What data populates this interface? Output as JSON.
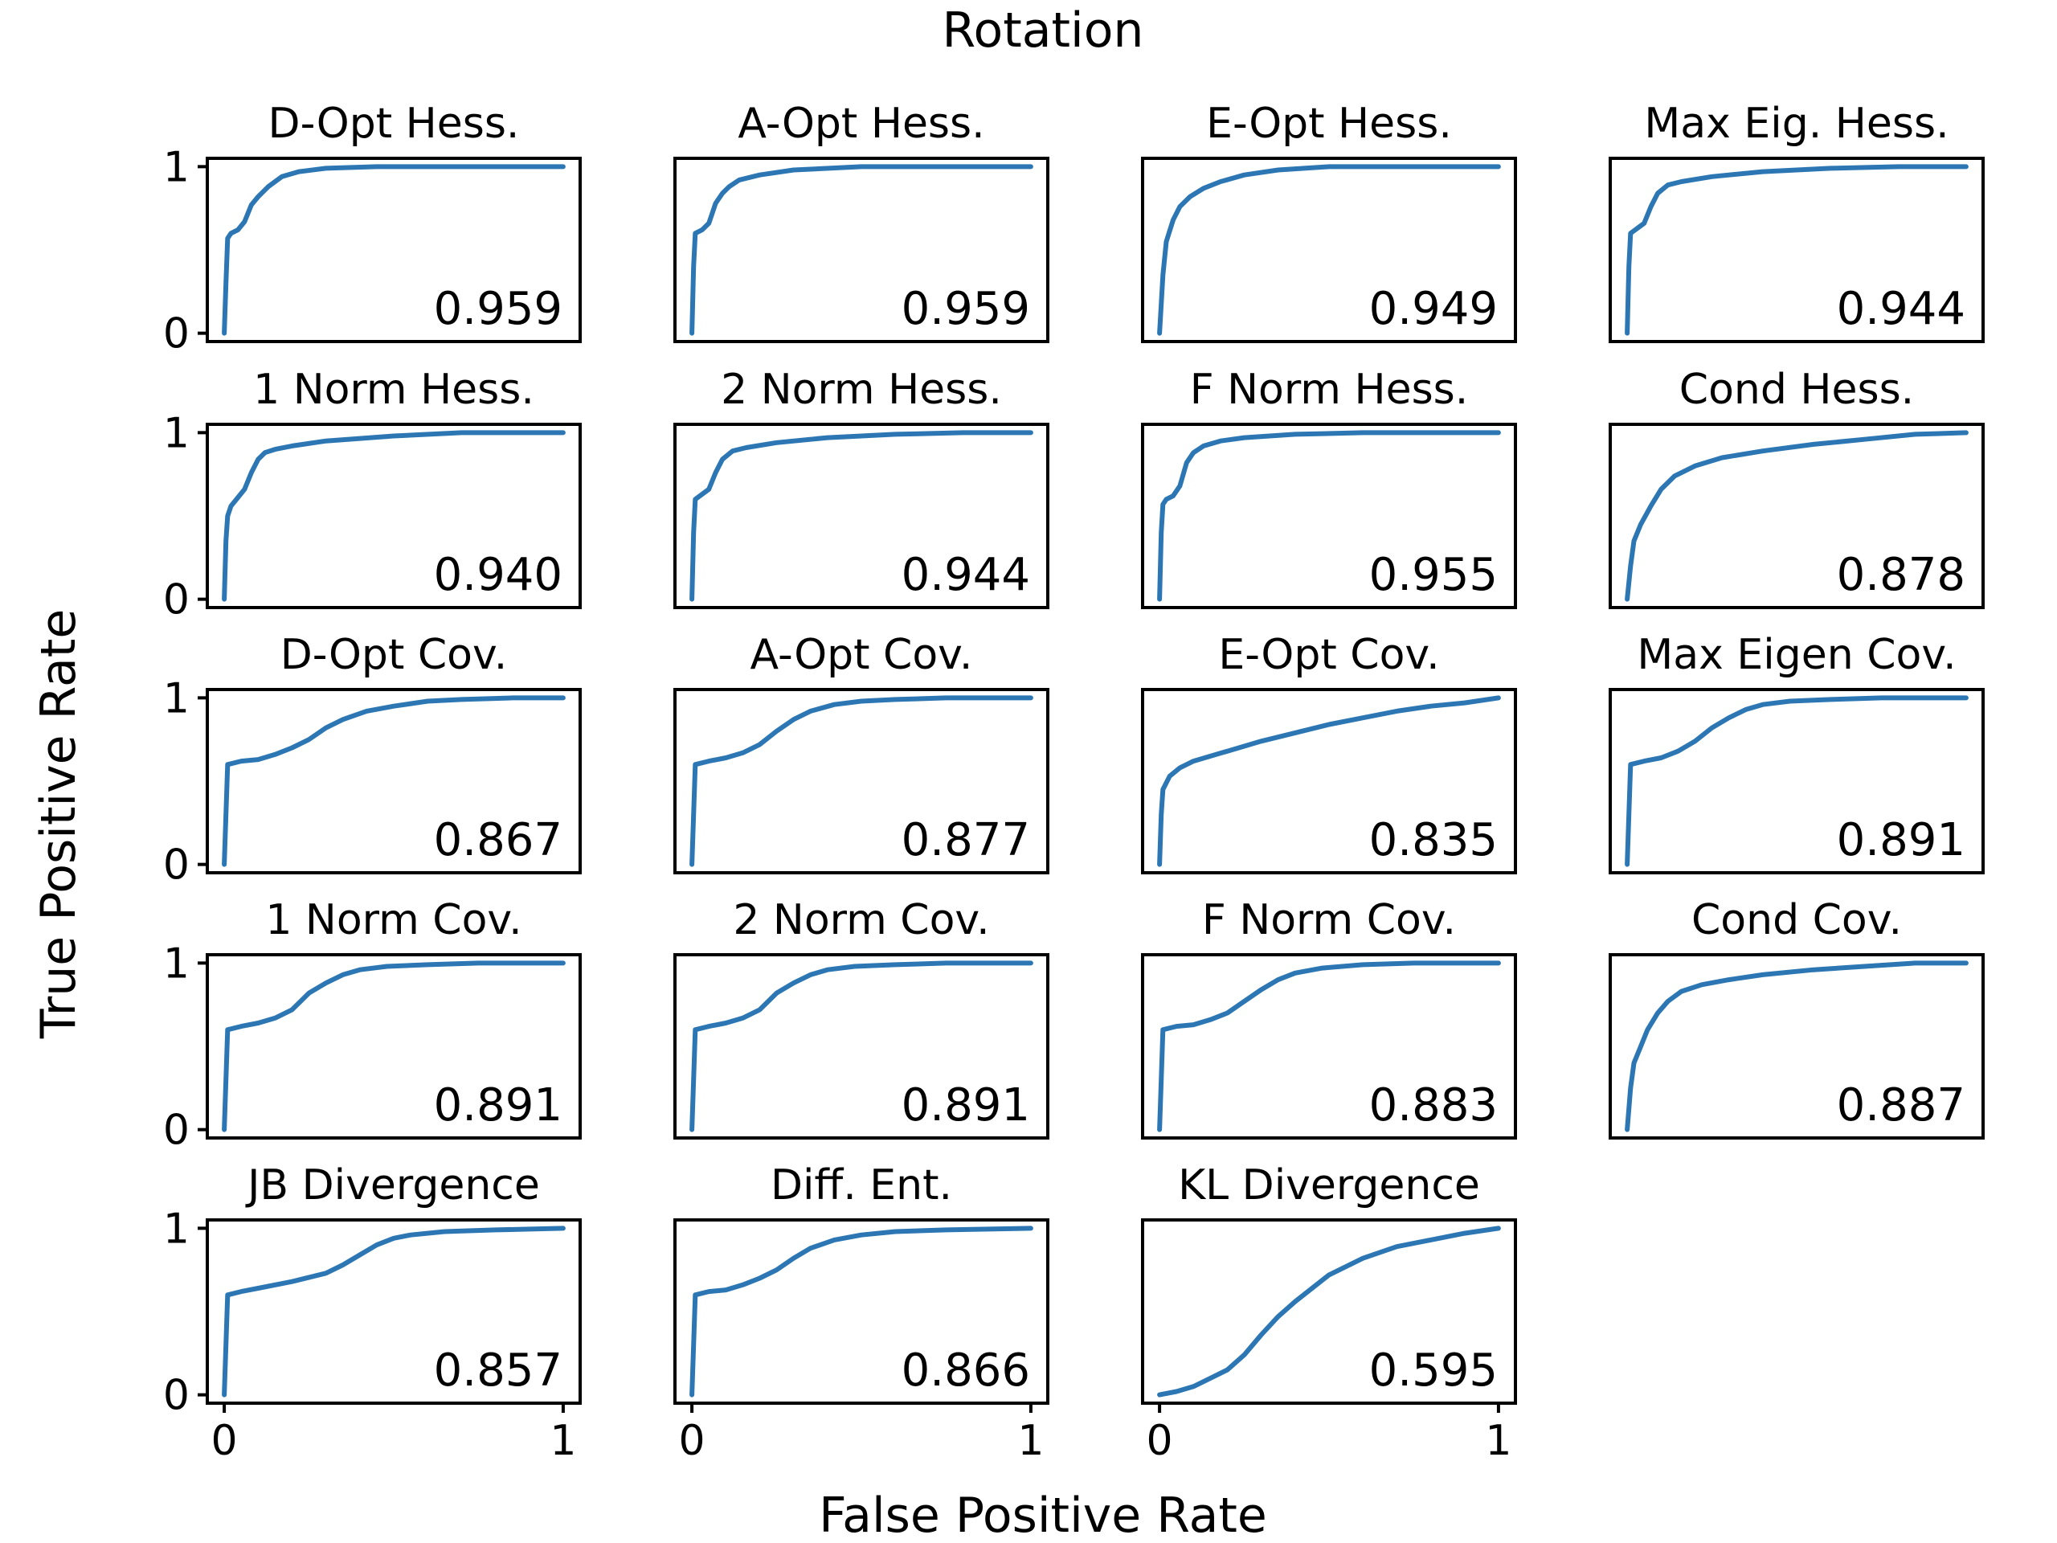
{
  "figure": {
    "title": "Rotation",
    "xlabel": "False Positive Rate",
    "ylabel": "True Positive Rate",
    "line_color": "#2c77b3"
  },
  "chart_data": {
    "type": "line",
    "grid": false,
    "xlim": [
      0,
      1
    ],
    "ylim": [
      0,
      1
    ],
    "xticks": [
      "0",
      "1"
    ],
    "yticks": [
      "0",
      "1"
    ],
    "panels": [
      {
        "title": "D-Opt Hess.",
        "auc": "0.959",
        "x": [
          0,
          0.005,
          0.01,
          0.02,
          0.04,
          0.06,
          0.08,
          0.1,
          0.13,
          0.17,
          0.22,
          0.3,
          0.45,
          0.7,
          1
        ],
        "y": [
          0,
          0.3,
          0.57,
          0.6,
          0.62,
          0.67,
          0.77,
          0.82,
          0.88,
          0.94,
          0.97,
          0.99,
          1,
          1,
          1
        ]
      },
      {
        "title": "A-Opt Hess.",
        "auc": "0.959",
        "x": [
          0,
          0.005,
          0.01,
          0.03,
          0.05,
          0.07,
          0.09,
          0.11,
          0.14,
          0.2,
          0.3,
          0.5,
          0.75,
          1
        ],
        "y": [
          0,
          0.4,
          0.6,
          0.62,
          0.66,
          0.78,
          0.84,
          0.88,
          0.92,
          0.95,
          0.98,
          1,
          1,
          1
        ]
      },
      {
        "title": "E-Opt Hess.",
        "auc": "0.949",
        "x": [
          0,
          0.01,
          0.02,
          0.04,
          0.06,
          0.09,
          0.13,
          0.18,
          0.25,
          0.35,
          0.5,
          0.75,
          1
        ],
        "y": [
          0,
          0.35,
          0.55,
          0.68,
          0.76,
          0.82,
          0.87,
          0.91,
          0.95,
          0.98,
          1,
          1,
          1
        ]
      },
      {
        "title": "Max Eig. Hess.",
        "auc": "0.944",
        "x": [
          0,
          0.005,
          0.01,
          0.03,
          0.05,
          0.07,
          0.09,
          0.12,
          0.16,
          0.25,
          0.4,
          0.6,
          0.8,
          1
        ],
        "y": [
          0,
          0.4,
          0.6,
          0.63,
          0.66,
          0.76,
          0.84,
          0.89,
          0.91,
          0.94,
          0.97,
          0.99,
          1,
          1
        ]
      },
      {
        "title": "1 Norm Hess.",
        "auc": "0.940",
        "x": [
          0,
          0.005,
          0.01,
          0.02,
          0.04,
          0.06,
          0.08,
          0.1,
          0.12,
          0.15,
          0.2,
          0.3,
          0.5,
          0.7,
          1
        ],
        "y": [
          0,
          0.35,
          0.5,
          0.56,
          0.61,
          0.66,
          0.76,
          0.84,
          0.88,
          0.9,
          0.92,
          0.95,
          0.98,
          1,
          1
        ]
      },
      {
        "title": "2 Norm Hess.",
        "auc": "0.944",
        "x": [
          0,
          0.005,
          0.01,
          0.03,
          0.05,
          0.07,
          0.09,
          0.12,
          0.16,
          0.25,
          0.4,
          0.6,
          0.8,
          1
        ],
        "y": [
          0,
          0.4,
          0.6,
          0.63,
          0.66,
          0.76,
          0.84,
          0.89,
          0.91,
          0.94,
          0.97,
          0.99,
          1,
          1
        ]
      },
      {
        "title": "F Norm Hess.",
        "auc": "0.955",
        "x": [
          0,
          0.005,
          0.01,
          0.02,
          0.04,
          0.06,
          0.08,
          0.1,
          0.13,
          0.18,
          0.25,
          0.4,
          0.6,
          1
        ],
        "y": [
          0,
          0.4,
          0.57,
          0.6,
          0.62,
          0.68,
          0.82,
          0.88,
          0.92,
          0.95,
          0.97,
          0.99,
          1,
          1
        ]
      },
      {
        "title": "Cond Hess.",
        "auc": "0.878",
        "x": [
          0,
          0.01,
          0.02,
          0.04,
          0.07,
          0.1,
          0.14,
          0.2,
          0.28,
          0.4,
          0.55,
          0.7,
          0.85,
          1
        ],
        "y": [
          0,
          0.2,
          0.35,
          0.45,
          0.56,
          0.66,
          0.74,
          0.8,
          0.85,
          0.89,
          0.93,
          0.96,
          0.99,
          1
        ]
      },
      {
        "title": "D-Opt Cov.",
        "auc": "0.867",
        "x": [
          0,
          0.005,
          0.01,
          0.05,
          0.1,
          0.15,
          0.2,
          0.25,
          0.3,
          0.35,
          0.42,
          0.5,
          0.6,
          0.7,
          0.85,
          1
        ],
        "y": [
          0,
          0.3,
          0.6,
          0.62,
          0.63,
          0.66,
          0.7,
          0.75,
          0.82,
          0.87,
          0.92,
          0.95,
          0.98,
          0.99,
          1,
          1
        ]
      },
      {
        "title": "A-Opt Cov.",
        "auc": "0.877",
        "x": [
          0,
          0.005,
          0.01,
          0.05,
          0.1,
          0.15,
          0.2,
          0.25,
          0.3,
          0.35,
          0.42,
          0.5,
          0.6,
          0.75,
          1
        ],
        "y": [
          0,
          0.3,
          0.6,
          0.62,
          0.64,
          0.67,
          0.72,
          0.8,
          0.87,
          0.92,
          0.96,
          0.98,
          0.99,
          1,
          1
        ]
      },
      {
        "title": "E-Opt Cov.",
        "auc": "0.835",
        "x": [
          0,
          0.005,
          0.01,
          0.03,
          0.06,
          0.1,
          0.15,
          0.2,
          0.3,
          0.4,
          0.5,
          0.6,
          0.7,
          0.8,
          0.9,
          1
        ],
        "y": [
          0,
          0.3,
          0.45,
          0.53,
          0.58,
          0.62,
          0.65,
          0.68,
          0.74,
          0.79,
          0.84,
          0.88,
          0.92,
          0.95,
          0.97,
          1
        ]
      },
      {
        "title": "Max Eigen Cov.",
        "auc": "0.891",
        "x": [
          0,
          0.005,
          0.01,
          0.05,
          0.1,
          0.15,
          0.2,
          0.25,
          0.3,
          0.35,
          0.4,
          0.48,
          0.6,
          0.75,
          1
        ],
        "y": [
          0,
          0.3,
          0.6,
          0.62,
          0.64,
          0.68,
          0.74,
          0.82,
          0.88,
          0.93,
          0.96,
          0.98,
          0.99,
          1,
          1
        ]
      },
      {
        "title": "1 Norm Cov.",
        "auc": "0.891",
        "x": [
          0,
          0.005,
          0.01,
          0.05,
          0.1,
          0.15,
          0.2,
          0.25,
          0.3,
          0.35,
          0.4,
          0.48,
          0.6,
          0.75,
          1
        ],
        "y": [
          0,
          0.3,
          0.6,
          0.62,
          0.64,
          0.67,
          0.72,
          0.82,
          0.88,
          0.93,
          0.96,
          0.98,
          0.99,
          1,
          1
        ]
      },
      {
        "title": "2 Norm Cov.",
        "auc": "0.891",
        "x": [
          0,
          0.005,
          0.01,
          0.05,
          0.1,
          0.15,
          0.2,
          0.25,
          0.3,
          0.35,
          0.4,
          0.48,
          0.6,
          0.75,
          1
        ],
        "y": [
          0,
          0.3,
          0.6,
          0.62,
          0.64,
          0.67,
          0.72,
          0.82,
          0.88,
          0.93,
          0.96,
          0.98,
          0.99,
          1,
          1
        ]
      },
      {
        "title": "F Norm Cov.",
        "auc": "0.883",
        "x": [
          0,
          0.005,
          0.01,
          0.05,
          0.1,
          0.15,
          0.2,
          0.25,
          0.3,
          0.35,
          0.4,
          0.48,
          0.6,
          0.75,
          1
        ],
        "y": [
          0,
          0.3,
          0.6,
          0.62,
          0.63,
          0.66,
          0.7,
          0.77,
          0.84,
          0.9,
          0.94,
          0.97,
          0.99,
          1,
          1
        ]
      },
      {
        "title": "Cond Cov.",
        "auc": "0.887",
        "x": [
          0,
          0.01,
          0.02,
          0.04,
          0.06,
          0.09,
          0.12,
          0.16,
          0.22,
          0.3,
          0.4,
          0.55,
          0.7,
          0.85,
          1
        ],
        "y": [
          0,
          0.25,
          0.4,
          0.5,
          0.6,
          0.7,
          0.77,
          0.83,
          0.87,
          0.9,
          0.93,
          0.96,
          0.98,
          1,
          1
        ]
      },
      {
        "title": "JB Divergence",
        "auc": "0.857",
        "x": [
          0,
          0.005,
          0.01,
          0.05,
          0.1,
          0.2,
          0.3,
          0.35,
          0.4,
          0.45,
          0.5,
          0.55,
          0.65,
          0.8,
          1
        ],
        "y": [
          0,
          0.3,
          0.6,
          0.62,
          0.64,
          0.68,
          0.73,
          0.78,
          0.84,
          0.9,
          0.94,
          0.96,
          0.98,
          0.99,
          1
        ]
      },
      {
        "title": "Diff. Ent.",
        "auc": "0.866",
        "x": [
          0,
          0.005,
          0.01,
          0.05,
          0.1,
          0.15,
          0.2,
          0.25,
          0.3,
          0.35,
          0.42,
          0.5,
          0.6,
          0.75,
          1
        ],
        "y": [
          0,
          0.3,
          0.6,
          0.62,
          0.63,
          0.66,
          0.7,
          0.75,
          0.82,
          0.88,
          0.93,
          0.96,
          0.98,
          0.99,
          1
        ]
      },
      {
        "title": "KL Divergence",
        "auc": "0.595",
        "x": [
          0,
          0.05,
          0.1,
          0.15,
          0.2,
          0.25,
          0.3,
          0.35,
          0.4,
          0.45,
          0.5,
          0.6,
          0.7,
          0.8,
          0.9,
          1
        ],
        "y": [
          0,
          0.02,
          0.05,
          0.1,
          0.15,
          0.24,
          0.36,
          0.47,
          0.56,
          0.64,
          0.72,
          0.82,
          0.89,
          0.93,
          0.97,
          1
        ]
      }
    ]
  }
}
